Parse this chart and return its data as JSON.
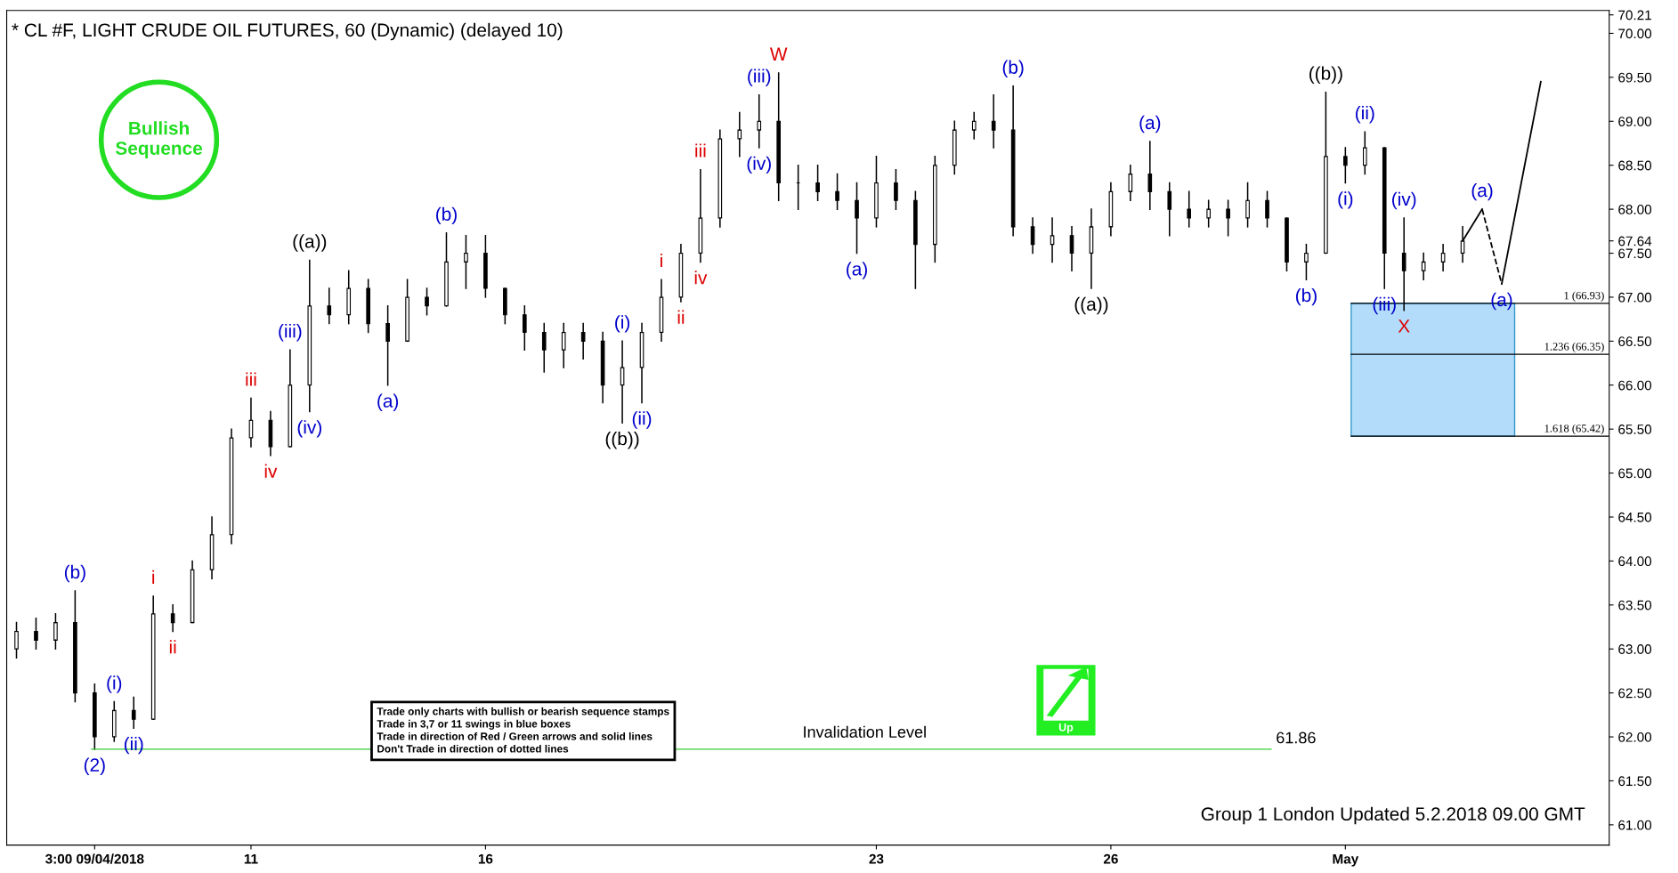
{
  "chart_data": {
    "type": "candlestick",
    "title": "* CL #F, LIGHT CRUDE OIL FUTURES, 60 (Dynamic) (delayed 10)",
    "categories": [
      null,
      null,
      null,
      null,
      "3:00 09/04/2018",
      null,
      null,
      null,
      null,
      null,
      null,
      null,
      "11",
      null,
      null,
      null,
      null,
      null,
      null,
      null,
      null,
      null,
      null,
      null,
      "16",
      null,
      null,
      null,
      null,
      null,
      null,
      null,
      null,
      null,
      null,
      null,
      null,
      null,
      null,
      null,
      null,
      null,
      null,
      null,
      "23",
      null,
      null,
      null,
      null,
      null,
      null,
      null,
      null,
      null,
      null,
      null,
      "26",
      null,
      null,
      null,
      null,
      null,
      null,
      null,
      null,
      null,
      null,
      null,
      "May",
      null,
      null,
      null,
      null,
      null,
      null,
      null,
      null,
      null,
      null,
      null,
      null,
      null
    ],
    "ohlc": [
      [
        63.0,
        63.3,
        62.9,
        63.2
      ],
      [
        63.2,
        63.35,
        63.0,
        63.1
      ],
      [
        63.1,
        63.4,
        63.0,
        63.3
      ],
      [
        63.3,
        63.66,
        62.4,
        62.5
      ],
      [
        62.5,
        62.6,
        61.86,
        62.0
      ],
      [
        62.0,
        62.4,
        61.95,
        62.3
      ],
      [
        62.3,
        62.45,
        62.1,
        62.2
      ],
      [
        62.2,
        63.6,
        62.2,
        63.4
      ],
      [
        63.4,
        63.5,
        63.2,
        63.3
      ],
      [
        63.3,
        64.0,
        63.3,
        63.9
      ],
      [
        63.9,
        64.5,
        63.8,
        64.3
      ],
      [
        64.3,
        65.5,
        64.2,
        65.4
      ],
      [
        65.4,
        65.85,
        65.3,
        65.6
      ],
      [
        65.6,
        65.7,
        65.2,
        65.3
      ],
      [
        65.3,
        66.4,
        65.3,
        66.0
      ],
      [
        66.0,
        67.42,
        65.7,
        66.9
      ],
      [
        66.9,
        67.1,
        66.7,
        66.8
      ],
      [
        66.8,
        67.3,
        66.7,
        67.1
      ],
      [
        67.1,
        67.2,
        66.6,
        66.7
      ],
      [
        66.7,
        66.9,
        66.0,
        66.5
      ],
      [
        66.5,
        67.2,
        66.5,
        67.0
      ],
      [
        67.0,
        67.1,
        66.8,
        66.9
      ],
      [
        66.9,
        67.73,
        66.9,
        67.4
      ],
      [
        67.4,
        67.7,
        67.1,
        67.5
      ],
      [
        67.5,
        67.7,
        67.0,
        67.1
      ],
      [
        67.1,
        67.1,
        66.7,
        66.8
      ],
      [
        66.8,
        66.9,
        66.4,
        66.6
      ],
      [
        66.6,
        66.7,
        66.15,
        66.4
      ],
      [
        66.4,
        66.7,
        66.2,
        66.6
      ],
      [
        66.6,
        66.7,
        66.3,
        66.5
      ],
      [
        66.5,
        66.6,
        65.8,
        66.0
      ],
      [
        66.0,
        66.5,
        65.57,
        66.2
      ],
      [
        66.2,
        66.7,
        65.8,
        66.6
      ],
      [
        66.6,
        67.2,
        66.5,
        67.0
      ],
      [
        67.0,
        67.6,
        66.95,
        67.5
      ],
      [
        67.5,
        68.45,
        67.4,
        67.9
      ],
      [
        67.9,
        68.9,
        67.8,
        68.8
      ],
      [
        68.8,
        69.1,
        68.6,
        68.9
      ],
      [
        68.9,
        69.3,
        68.7,
        69.0
      ],
      [
        69.0,
        69.55,
        68.1,
        68.3
      ],
      [
        68.3,
        68.5,
        68.0,
        68.3
      ],
      [
        68.3,
        68.5,
        68.1,
        68.2
      ],
      [
        68.2,
        68.4,
        68.0,
        68.1
      ],
      [
        68.1,
        68.3,
        67.5,
        67.9
      ],
      [
        67.9,
        68.6,
        67.8,
        68.3
      ],
      [
        68.3,
        68.45,
        68.0,
        68.1
      ],
      [
        68.1,
        68.2,
        67.1,
        67.6
      ],
      [
        67.6,
        68.6,
        67.4,
        68.5
      ],
      [
        68.5,
        69.0,
        68.4,
        68.9
      ],
      [
        68.9,
        69.1,
        68.8,
        69.0
      ],
      [
        69.0,
        69.3,
        68.7,
        68.9
      ],
      [
        68.9,
        69.4,
        67.7,
        67.8
      ],
      [
        67.8,
        67.9,
        67.5,
        67.6
      ],
      [
        67.6,
        67.9,
        67.4,
        67.7
      ],
      [
        67.7,
        67.8,
        67.3,
        67.5
      ],
      [
        67.5,
        68.0,
        67.1,
        67.8
      ],
      [
        67.8,
        68.3,
        67.7,
        68.2
      ],
      [
        68.2,
        68.5,
        68.1,
        68.4
      ],
      [
        68.4,
        68.77,
        68.0,
        68.2
      ],
      [
        68.2,
        68.3,
        67.7,
        68.0
      ],
      [
        68.0,
        68.2,
        67.8,
        67.9
      ],
      [
        67.9,
        68.1,
        67.8,
        68.0
      ],
      [
        68.0,
        68.1,
        67.7,
        67.9
      ],
      [
        67.9,
        68.3,
        67.8,
        68.1
      ],
      [
        68.1,
        68.2,
        67.8,
        67.9
      ],
      [
        67.9,
        67.9,
        67.3,
        67.4
      ],
      [
        67.4,
        67.6,
        67.2,
        67.5
      ],
      [
        67.5,
        69.33,
        67.5,
        68.6
      ],
      [
        68.6,
        68.7,
        68.3,
        68.5
      ],
      [
        68.5,
        68.88,
        68.4,
        68.7
      ],
      [
        68.7,
        68.7,
        67.1,
        67.5
      ],
      [
        67.5,
        67.9,
        66.85,
        67.3
      ],
      [
        67.3,
        67.5,
        67.2,
        67.4
      ],
      [
        67.4,
        67.6,
        67.3,
        67.5
      ],
      [
        67.5,
        67.8,
        67.4,
        67.64
      ],
      null,
      null,
      null,
      null,
      null,
      null,
      null
    ],
    "color": "#000000",
    "series": [
      {
        "type": "line",
        "color": "#000000",
        "line_style": "solid",
        "values": [
          null,
          null,
          null,
          null,
          null,
          null,
          null,
          null,
          null,
          null,
          null,
          null,
          null,
          null,
          null,
          null,
          null,
          null,
          null,
          null,
          null,
          null,
          null,
          null,
          null,
          null,
          null,
          null,
          null,
          null,
          null,
          null,
          null,
          null,
          null,
          null,
          null,
          null,
          null,
          null,
          null,
          null,
          null,
          null,
          null,
          null,
          null,
          null,
          null,
          null,
          null,
          null,
          null,
          null,
          null,
          null,
          null,
          null,
          null,
          null,
          null,
          null,
          null,
          null,
          null,
          null,
          null,
          null,
          null,
          null,
          null,
          null,
          null,
          null,
          67.64,
          68.0,
          null,
          null,
          null,
          null,
          null,
          null
        ]
      },
      {
        "type": "line",
        "color": "#000000",
        "line_style": "dashed",
        "values": [
          null,
          null,
          null,
          null,
          null,
          null,
          null,
          null,
          null,
          null,
          null,
          null,
          null,
          null,
          null,
          null,
          null,
          null,
          null,
          null,
          null,
          null,
          null,
          null,
          null,
          null,
          null,
          null,
          null,
          null,
          null,
          null,
          null,
          null,
          null,
          null,
          null,
          null,
          null,
          null,
          null,
          null,
          null,
          null,
          null,
          null,
          null,
          null,
          null,
          null,
          null,
          null,
          null,
          null,
          null,
          null,
          null,
          null,
          null,
          null,
          null,
          null,
          null,
          null,
          null,
          null,
          null,
          null,
          null,
          null,
          null,
          null,
          null,
          null,
          null,
          68.0,
          67.15,
          null,
          null,
          null,
          null,
          null
        ]
      },
      {
        "type": "line",
        "color": "#000000",
        "line_style": "solid",
        "values": [
          null,
          null,
          null,
          null,
          null,
          null,
          null,
          null,
          null,
          null,
          null,
          null,
          null,
          null,
          null,
          null,
          null,
          null,
          null,
          null,
          null,
          null,
          null,
          null,
          null,
          null,
          null,
          null,
          null,
          null,
          null,
          null,
          null,
          null,
          null,
          null,
          null,
          null,
          null,
          null,
          null,
          null,
          null,
          null,
          null,
          null,
          null,
          null,
          null,
          null,
          null,
          null,
          null,
          null,
          null,
          null,
          null,
          null,
          null,
          null,
          null,
          null,
          null,
          null,
          null,
          null,
          null,
          null,
          null,
          null,
          null,
          null,
          null,
          null,
          null,
          null,
          67.15,
          68.3,
          69.45,
          null,
          null,
          null
        ]
      }
    ],
    "ylim": [
      60.77,
      70.26
    ],
    "yticks": [
      {
        "value": 61,
        "label": "61.00"
      },
      {
        "value": 61.5,
        "label": "61.50"
      },
      {
        "value": 62,
        "label": "62.00"
      },
      {
        "value": 62.5,
        "label": "62.50"
      },
      {
        "value": 63,
        "label": "63.00"
      },
      {
        "value": 63.5,
        "label": "63.50"
      },
      {
        "value": 64,
        "label": "64.00"
      },
      {
        "value": 64.5,
        "label": "64.50"
      },
      {
        "value": 65,
        "label": "65.00"
      },
      {
        "value": 65.5,
        "label": "65.50"
      },
      {
        "value": 66,
        "label": "66.00"
      },
      {
        "value": 66.5,
        "label": "66.50"
      },
      {
        "value": 67,
        "label": "67.00"
      },
      {
        "value": 67.5,
        "label": "67.50"
      },
      {
        "value": 67.64,
        "label": "67.64"
      },
      {
        "value": 68,
        "label": "68.00"
      },
      {
        "value": 68.5,
        "label": "68.50"
      },
      {
        "value": 69,
        "label": "69.00"
      },
      {
        "value": 69.5,
        "label": "69.50"
      },
      {
        "value": 70,
        "label": "70.00"
      },
      {
        "value": 70.21,
        "label": "70.21"
      }
    ],
    "bands": [
      {
        "axis": "y",
        "from": 65.42,
        "to": 66.93,
        "color": "#b3dcfb"
      }
    ],
    "ref_lines": [
      {
        "axis": "y",
        "value": 66.93,
        "label": "1 (66.93)",
        "color": "#000000"
      },
      {
        "axis": "y",
        "value": 66.35,
        "label": "1.236 (66.35)",
        "color": "#000000"
      },
      {
        "axis": "y",
        "value": 65.42,
        "label": "1.618 (65.42)",
        "color": "#000000"
      },
      {
        "axis": "y",
        "value": 61.86,
        "label": "61.86",
        "color": "#33cc33"
      }
    ],
    "annotations": [
      "Bullish\nSequence",
      "Trade only charts with bullish or bearish sequence stamps\nTrade in 3,7 or 11 swings in blue boxes\nTrade in direction of Red / Green arrows and solid lines\nDon't Trade in direction of dotted lines",
      "Up",
      "Group 1 London Updated 5.2.2018 09.00 GMT",
      "Invalidation Level",
      {
        "text": "(b)",
        "y": 63.66
      },
      {
        "text": "(2)",
        "y": 61.86
      },
      {
        "text": "(i)",
        "y": 62.4
      },
      {
        "text": "(ii)",
        "y": 62.1
      },
      {
        "text": "i",
        "y": 63.6
      },
      {
        "text": "ii",
        "y": 63.2
      },
      {
        "text": "iii",
        "y": 65.85
      },
      {
        "text": "iv",
        "y": 65.2
      },
      {
        "text": "(iii)",
        "y": 66.4
      },
      {
        "text": "(iv)",
        "y": 65.7
      },
      {
        "text": "((a))",
        "y": 67.42
      },
      {
        "text": "(a)",
        "y": 66.0
      },
      {
        "text": "(b)",
        "y": 67.73
      },
      {
        "text": "(i)",
        "y": 66.5
      },
      {
        "text": "((b))",
        "y": 65.57
      },
      {
        "text": "(ii)",
        "y": 65.8
      },
      {
        "text": "i",
        "y": 67.2
      },
      {
        "text": "ii",
        "y": 66.95
      },
      {
        "text": "iii",
        "y": 68.45
      },
      {
        "text": "iv",
        "y": 67.4
      },
      {
        "text": "(iii)",
        "y": 69.3
      },
      {
        "text": "(iv)",
        "y": 68.7
      },
      {
        "text": "W",
        "y": 69.55
      },
      {
        "text": "(a)",
        "y": 67.5
      },
      {
        "text": "(b)",
        "y": 69.4
      },
      {
        "text": "((a))",
        "y": 67.1
      },
      {
        "text": "(a)",
        "y": 68.77
      },
      {
        "text": "(b)",
        "y": 67.2
      },
      {
        "text": "((b))",
        "y": 69.33
      },
      {
        "text": "(i)",
        "y": 68.3
      },
      {
        "text": "(ii)",
        "y": 68.88
      },
      {
        "text": "(iii)",
        "y": 67.1
      },
      {
        "text": "(iv)",
        "y": 67.9
      },
      {
        "text": "X",
        "y": 66.85
      },
      {
        "text": "(a)",
        "y": 68.0
      },
      {
        "text": "(a)",
        "y": 67.15
      }
    ]
  }
}
